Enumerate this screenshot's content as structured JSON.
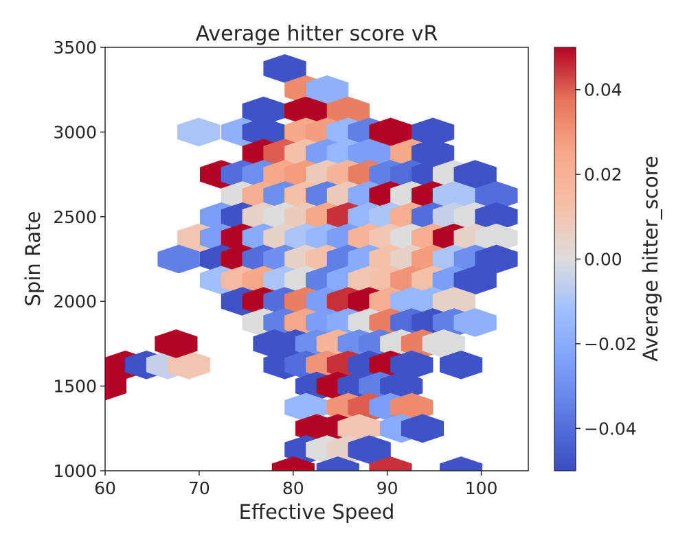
{
  "chart_data": {
    "type": "heatmap",
    "subtype": "hexbin",
    "title": "Average hitter score vR",
    "xlabel": "Effective Speed",
    "ylabel": "Spin Rate",
    "xlim": [
      60,
      105
    ],
    "ylim": [
      1000,
      3500
    ],
    "xticks": [
      60,
      70,
      80,
      90,
      100
    ],
    "yticks": [
      1000,
      1500,
      2000,
      2500,
      3000,
      3500
    ],
    "grid": false,
    "colormap": "coolwarm",
    "colorbar": {
      "label": "Average hitter_score",
      "vmin": -0.05,
      "vmax": 0.05,
      "ticks": [
        0.04,
        0.02,
        0.0,
        -0.02,
        -0.04
      ],
      "tick_labels": [
        "0.04",
        "0.02",
        "0.00",
        "−0.02",
        "−0.04"
      ]
    },
    "hex_spacing": {
      "dx": 4.5,
      "dy": 125
    },
    "cells": [
      {
        "x": 79.1,
        "y": 3375,
        "v": -0.048
      },
      {
        "x": 81.35,
        "y": 3250,
        "v": 0.032
      },
      {
        "x": 83.6,
        "y": 3250,
        "v": -0.018
      },
      {
        "x": 76.85,
        "y": 3125,
        "v": -0.048
      },
      {
        "x": 81.35,
        "y": 3125,
        "v": 0.05
      },
      {
        "x": 85.85,
        "y": 3125,
        "v": 0.035
      },
      {
        "x": 69.95,
        "y": 3000,
        "v": -0.01
      },
      {
        "x": 74.6,
        "y": 3000,
        "v": -0.018
      },
      {
        "x": 76.85,
        "y": 3000,
        "v": -0.048
      },
      {
        "x": 81.35,
        "y": 3000,
        "v": 0.025
      },
      {
        "x": 83.6,
        "y": 3000,
        "v": 0.028
      },
      {
        "x": 85.85,
        "y": 3000,
        "v": -0.015
      },
      {
        "x": 88.1,
        "y": 3000,
        "v": -0.035
      },
      {
        "x": 90.35,
        "y": 3000,
        "v": 0.05
      },
      {
        "x": 94.85,
        "y": 3000,
        "v": -0.048
      },
      {
        "x": 76.85,
        "y": 2875,
        "v": 0.05
      },
      {
        "x": 79.1,
        "y": 2875,
        "v": 0.04
      },
      {
        "x": 81.35,
        "y": 2875,
        "v": 0.012
      },
      {
        "x": 83.6,
        "y": 2875,
        "v": -0.025
      },
      {
        "x": 85.85,
        "y": 2875,
        "v": -0.015
      },
      {
        "x": 88.1,
        "y": 2875,
        "v": -0.025
      },
      {
        "x": 92.6,
        "y": 2875,
        "v": 0.025
      },
      {
        "x": 94.85,
        "y": 2875,
        "v": -0.048
      },
      {
        "x": 72.35,
        "y": 2750,
        "v": 0.05
      },
      {
        "x": 74.6,
        "y": 2750,
        "v": -0.04
      },
      {
        "x": 76.85,
        "y": 2750,
        "v": -0.03
      },
      {
        "x": 79.1,
        "y": 2750,
        "v": 0.025
      },
      {
        "x": 81.35,
        "y": 2750,
        "v": 0.028
      },
      {
        "x": 83.6,
        "y": 2750,
        "v": 0.008
      },
      {
        "x": 85.85,
        "y": 2750,
        "v": 0.018
      },
      {
        "x": 88.1,
        "y": 2750,
        "v": 0.035
      },
      {
        "x": 90.35,
        "y": 2750,
        "v": -0.035
      },
      {
        "x": 92.6,
        "y": 2750,
        "v": -0.04
      },
      {
        "x": 94.85,
        "y": 2750,
        "v": -0.048
      },
      {
        "x": 97.1,
        "y": 2750,
        "v": 0.0
      },
      {
        "x": 99.35,
        "y": 2750,
        "v": -0.048
      },
      {
        "x": 74.6,
        "y": 2625,
        "v": 0.0
      },
      {
        "x": 76.85,
        "y": 2625,
        "v": 0.022
      },
      {
        "x": 79.1,
        "y": 2625,
        "v": -0.03
      },
      {
        "x": 81.35,
        "y": 2625,
        "v": 0.012
      },
      {
        "x": 83.6,
        "y": 2625,
        "v": -0.035
      },
      {
        "x": 85.85,
        "y": 2625,
        "v": 0.008
      },
      {
        "x": 88.1,
        "y": 2625,
        "v": -0.02
      },
      {
        "x": 90.35,
        "y": 2625,
        "v": 0.05
      },
      {
        "x": 92.6,
        "y": 2625,
        "v": 0.0
      },
      {
        "x": 94.85,
        "y": 2625,
        "v": 0.05
      },
      {
        "x": 97.1,
        "y": 2625,
        "v": -0.01
      },
      {
        "x": 101.6,
        "y": 2625,
        "v": -0.04
      },
      {
        "x": 72.35,
        "y": 2500,
        "v": -0.025
      },
      {
        "x": 74.6,
        "y": 2500,
        "v": -0.048
      },
      {
        "x": 76.85,
        "y": 2500,
        "v": 0.005
      },
      {
        "x": 79.1,
        "y": 2500,
        "v": 0.0
      },
      {
        "x": 81.35,
        "y": 2500,
        "v": 0.008
      },
      {
        "x": 83.6,
        "y": 2500,
        "v": 0.025
      },
      {
        "x": 85.85,
        "y": 2500,
        "v": 0.045
      },
      {
        "x": 88.1,
        "y": 2500,
        "v": -0.015
      },
      {
        "x": 90.35,
        "y": 2500,
        "v": -0.01
      },
      {
        "x": 92.6,
        "y": 2500,
        "v": 0.022
      },
      {
        "x": 94.85,
        "y": 2500,
        "v": -0.04
      },
      {
        "x": 97.1,
        "y": 2500,
        "v": -0.005
      },
      {
        "x": 99.35,
        "y": 2500,
        "v": 0.0
      },
      {
        "x": 101.6,
        "y": 2500,
        "v": -0.048
      },
      {
        "x": 69.95,
        "y": 2375,
        "v": 0.01
      },
      {
        "x": 72.35,
        "y": 2375,
        "v": -0.025
      },
      {
        "x": 74.6,
        "y": 2375,
        "v": 0.05
      },
      {
        "x": 76.85,
        "y": 2375,
        "v": -0.02
      },
      {
        "x": 79.1,
        "y": 2375,
        "v": 0.005
      },
      {
        "x": 81.35,
        "y": 2375,
        "v": -0.01
      },
      {
        "x": 83.6,
        "y": 2375,
        "v": -0.015
      },
      {
        "x": 85.85,
        "y": 2375,
        "v": -0.025
      },
      {
        "x": 88.1,
        "y": 2375,
        "v": 0.018
      },
      {
        "x": 90.35,
        "y": 2375,
        "v": 0.01
      },
      {
        "x": 92.6,
        "y": 2375,
        "v": 0.0
      },
      {
        "x": 94.85,
        "y": 2375,
        "v": 0.022
      },
      {
        "x": 97.1,
        "y": 2375,
        "v": 0.05
      },
      {
        "x": 99.35,
        "y": 2375,
        "v": 0.005
      },
      {
        "x": 101.6,
        "y": 2375,
        "v": 0.0
      },
      {
        "x": 67.85,
        "y": 2250,
        "v": -0.035
      },
      {
        "x": 72.35,
        "y": 2250,
        "v": -0.048
      },
      {
        "x": 74.6,
        "y": 2250,
        "v": 0.05
      },
      {
        "x": 76.85,
        "y": 2250,
        "v": -0.04
      },
      {
        "x": 79.1,
        "y": 2250,
        "v": -0.03
      },
      {
        "x": 81.35,
        "y": 2250,
        "v": 0.005
      },
      {
        "x": 83.6,
        "y": 2250,
        "v": 0.012
      },
      {
        "x": 85.85,
        "y": 2250,
        "v": -0.035
      },
      {
        "x": 88.1,
        "y": 2250,
        "v": -0.02
      },
      {
        "x": 90.35,
        "y": 2250,
        "v": 0.012
      },
      {
        "x": 92.6,
        "y": 2250,
        "v": 0.005
      },
      {
        "x": 94.85,
        "y": 2250,
        "v": 0.028
      },
      {
        "x": 97.1,
        "y": 2250,
        "v": -0.01
      },
      {
        "x": 99.35,
        "y": 2250,
        "v": -0.03
      },
      {
        "x": 101.6,
        "y": 2250,
        "v": -0.048
      },
      {
        "x": 72.35,
        "y": 2125,
        "v": -0.012
      },
      {
        "x": 74.6,
        "y": 2125,
        "v": 0.015
      },
      {
        "x": 76.85,
        "y": 2125,
        "v": 0.025
      },
      {
        "x": 79.1,
        "y": 2125,
        "v": -0.01
      },
      {
        "x": 81.35,
        "y": 2125,
        "v": 0.0
      },
      {
        "x": 83.6,
        "y": 2125,
        "v": -0.035
      },
      {
        "x": 85.85,
        "y": 2125,
        "v": -0.02
      },
      {
        "x": 88.1,
        "y": 2125,
        "v": 0.01
      },
      {
        "x": 90.35,
        "y": 2125,
        "v": 0.012
      },
      {
        "x": 92.6,
        "y": 2125,
        "v": 0.03
      },
      {
        "x": 94.85,
        "y": 2125,
        "v": 0.012
      },
      {
        "x": 97.1,
        "y": 2125,
        "v": -0.025
      },
      {
        "x": 99.35,
        "y": 2125,
        "v": -0.048
      },
      {
        "x": 74.6,
        "y": 2000,
        "v": -0.048
      },
      {
        "x": 76.85,
        "y": 2000,
        "v": 0.05
      },
      {
        "x": 79.1,
        "y": 2000,
        "v": -0.04
      },
      {
        "x": 81.35,
        "y": 2000,
        "v": 0.035
      },
      {
        "x": 83.6,
        "y": 2000,
        "v": -0.025
      },
      {
        "x": 85.85,
        "y": 2000,
        "v": 0.045
      },
      {
        "x": 88.1,
        "y": 2000,
        "v": 0.05
      },
      {
        "x": 90.35,
        "y": 2000,
        "v": 0.022
      },
      {
        "x": 92.6,
        "y": 2000,
        "v": -0.015
      },
      {
        "x": 94.85,
        "y": 2000,
        "v": -0.015
      },
      {
        "x": 97.1,
        "y": 2000,
        "v": 0.005
      },
      {
        "x": 76.85,
        "y": 1875,
        "v": 0.0
      },
      {
        "x": 79.1,
        "y": 1875,
        "v": -0.035
      },
      {
        "x": 81.35,
        "y": 1875,
        "v": 0.025
      },
      {
        "x": 83.6,
        "y": 1875,
        "v": -0.025
      },
      {
        "x": 85.85,
        "y": 1875,
        "v": -0.02
      },
      {
        "x": 88.1,
        "y": 1875,
        "v": 0.0
      },
      {
        "x": 90.35,
        "y": 1875,
        "v": 0.035
      },
      {
        "x": 92.6,
        "y": 1875,
        "v": -0.04
      },
      {
        "x": 94.85,
        "y": 1875,
        "v": -0.048
      },
      {
        "x": 97.1,
        "y": 1875,
        "v": -0.035
      },
      {
        "x": 99.35,
        "y": 1875,
        "v": -0.018
      },
      {
        "x": 62.15,
        "y": 1625,
        "v": 0.05
      },
      {
        "x": 64.4,
        "y": 1625,
        "v": -0.048
      },
      {
        "x": 66.65,
        "y": 1625,
        "v": -0.005
      },
      {
        "x": 68.9,
        "y": 1625,
        "v": 0.01
      },
      {
        "x": 60.0,
        "y": 1500,
        "v": 0.05
      },
      {
        "x": 67.55,
        "y": 1750,
        "v": 0.05
      },
      {
        "x": 78.0,
        "y": 1750,
        "v": -0.048
      },
      {
        "x": 80.25,
        "y": 1750,
        "v": -0.048
      },
      {
        "x": 82.5,
        "y": 1750,
        "v": -0.03
      },
      {
        "x": 84.75,
        "y": 1750,
        "v": 0.018
      },
      {
        "x": 87.0,
        "y": 1750,
        "v": -0.03
      },
      {
        "x": 89.25,
        "y": 1750,
        "v": -0.035
      },
      {
        "x": 91.5,
        "y": 1750,
        "v": 0.0
      },
      {
        "x": 93.75,
        "y": 1750,
        "v": 0.035
      },
      {
        "x": 96.0,
        "y": 1750,
        "v": 0.0
      },
      {
        "x": 79.1,
        "y": 1625,
        "v": -0.048
      },
      {
        "x": 81.35,
        "y": 1625,
        "v": -0.04
      },
      {
        "x": 83.6,
        "y": 1625,
        "v": 0.03
      },
      {
        "x": 85.85,
        "y": 1625,
        "v": 0.045
      },
      {
        "x": 88.1,
        "y": 1625,
        "v": -0.048
      },
      {
        "x": 90.35,
        "y": 1625,
        "v": 0.05
      },
      {
        "x": 92.6,
        "y": 1625,
        "v": -0.048
      },
      {
        "x": 97.85,
        "y": 1625,
        "v": -0.048
      },
      {
        "x": 82.5,
        "y": 1500,
        "v": -0.048
      },
      {
        "x": 84.75,
        "y": 1500,
        "v": 0.05
      },
      {
        "x": 87.0,
        "y": 1500,
        "v": -0.048
      },
      {
        "x": 89.25,
        "y": 1500,
        "v": -0.035
      },
      {
        "x": 91.5,
        "y": 1500,
        "v": -0.048
      },
      {
        "x": 81.35,
        "y": 1375,
        "v": -0.015
      },
      {
        "x": 85.85,
        "y": 1375,
        "v": 0.03
      },
      {
        "x": 88.1,
        "y": 1375,
        "v": 0.04
      },
      {
        "x": 90.35,
        "y": 1375,
        "v": -0.025
      },
      {
        "x": 92.6,
        "y": 1375,
        "v": 0.032
      },
      {
        "x": 82.5,
        "y": 1250,
        "v": 0.05
      },
      {
        "x": 84.75,
        "y": 1250,
        "v": 0.05
      },
      {
        "x": 87.0,
        "y": 1250,
        "v": 0.01
      },
      {
        "x": 91.5,
        "y": 1250,
        "v": -0.02
      },
      {
        "x": 93.75,
        "y": 1250,
        "v": -0.048
      },
      {
        "x": 81.35,
        "y": 1125,
        "v": -0.048
      },
      {
        "x": 83.6,
        "y": 1125,
        "v": 0.0
      },
      {
        "x": 85.85,
        "y": 1125,
        "v": 0.005
      },
      {
        "x": 88.1,
        "y": 1125,
        "v": -0.048
      },
      {
        "x": 80.0,
        "y": 1000,
        "v": 0.05
      },
      {
        "x": 84.75,
        "y": 1000,
        "v": -0.048
      },
      {
        "x": 90.35,
        "y": 1000,
        "v": 0.045
      },
      {
        "x": 97.85,
        "y": 1000,
        "v": -0.048
      }
    ]
  }
}
